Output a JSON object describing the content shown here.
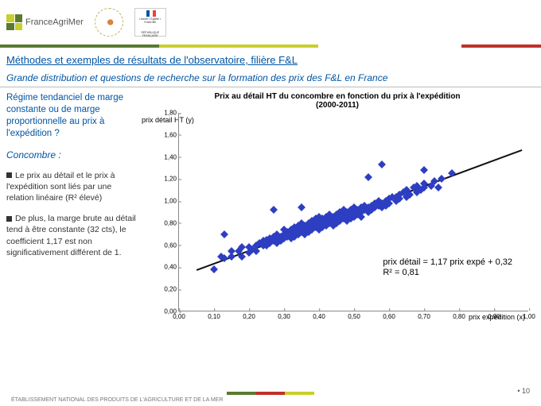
{
  "logos": {
    "france_agrimer": "FranceAgriMer",
    "rf": "RÉPUBLIQUE FRANÇAISE"
  },
  "title": "Méthodes et  exemples de résultats  de l'observatoire, filière F&L",
  "subtitle": "Grande distribution et questions de recherche sur la formation des prix des F&L en France",
  "question": "Régime tendanciel de marge constante ou de marge proportionnelle au prix à l'expédition ?",
  "subject": "Concombre :",
  "para1": "Le prix au détail et le prix à l'expédition sont liés par une relation linéaire (R² élevé)",
  "para2": "De plus, la marge brute au détail tend à être constante (32 cts), le coefficient 1,17 est non significativement différent de 1.",
  "chart": {
    "type": "scatter",
    "title1": "Prix au détail HT du concombre en fonction du prix à l'expédition",
    "title2": "(2000-2011)",
    "ylabel": "prix détail HT (y)",
    "xlabel": "prix expédition (x)",
    "xlim": [
      0,
      1.0
    ],
    "xstep": 0.1,
    "ylim": [
      0,
      1.8
    ],
    "ystep": 0.2,
    "marker_color": "#2e3ec2",
    "background": "#ffffff",
    "equation": "prix détail = 1,17 prix expé + 0,32",
    "r2": "R² = 0,81",
    "trend": {
      "slope": 1.17,
      "intercept": 0.32,
      "color": "#111111",
      "width": 1.5
    },
    "points": [
      [
        0.12,
        0.5
      ],
      [
        0.13,
        0.48
      ],
      [
        0.15,
        0.5
      ],
      [
        0.15,
        0.55
      ],
      [
        0.17,
        0.55
      ],
      [
        0.18,
        0.5
      ],
      [
        0.18,
        0.58
      ],
      [
        0.2,
        0.53
      ],
      [
        0.2,
        0.58
      ],
      [
        0.21,
        0.56
      ],
      [
        0.22,
        0.6
      ],
      [
        0.22,
        0.55
      ],
      [
        0.23,
        0.62
      ],
      [
        0.24,
        0.6
      ],
      [
        0.24,
        0.64
      ],
      [
        0.25,
        0.6
      ],
      [
        0.25,
        0.65
      ],
      [
        0.26,
        0.66
      ],
      [
        0.26,
        0.62
      ],
      [
        0.27,
        0.64
      ],
      [
        0.27,
        0.68
      ],
      [
        0.28,
        0.62
      ],
      [
        0.28,
        0.66
      ],
      [
        0.28,
        0.7
      ],
      [
        0.29,
        0.68
      ],
      [
        0.29,
        0.64
      ],
      [
        0.3,
        0.66
      ],
      [
        0.3,
        0.7
      ],
      [
        0.3,
        0.74
      ],
      [
        0.31,
        0.68
      ],
      [
        0.31,
        0.72
      ],
      [
        0.32,
        0.66
      ],
      [
        0.32,
        0.7
      ],
      [
        0.32,
        0.74
      ],
      [
        0.33,
        0.72
      ],
      [
        0.33,
        0.76
      ],
      [
        0.33,
        0.68
      ],
      [
        0.34,
        0.7
      ],
      [
        0.34,
        0.74
      ],
      [
        0.34,
        0.78
      ],
      [
        0.35,
        0.72
      ],
      [
        0.35,
        0.76
      ],
      [
        0.35,
        0.8
      ],
      [
        0.36,
        0.74
      ],
      [
        0.36,
        0.78
      ],
      [
        0.36,
        0.7
      ],
      [
        0.37,
        0.76
      ],
      [
        0.37,
        0.8
      ],
      [
        0.37,
        0.72
      ],
      [
        0.38,
        0.78
      ],
      [
        0.38,
        0.74
      ],
      [
        0.38,
        0.82
      ],
      [
        0.39,
        0.76
      ],
      [
        0.39,
        0.8
      ],
      [
        0.39,
        0.84
      ],
      [
        0.4,
        0.78
      ],
      [
        0.4,
        0.82
      ],
      [
        0.4,
        0.74
      ],
      [
        0.4,
        0.86
      ],
      [
        0.41,
        0.8
      ],
      [
        0.41,
        0.84
      ],
      [
        0.41,
        0.76
      ],
      [
        0.42,
        0.82
      ],
      [
        0.42,
        0.78
      ],
      [
        0.42,
        0.86
      ],
      [
        0.43,
        0.8
      ],
      [
        0.43,
        0.84
      ],
      [
        0.43,
        0.88
      ],
      [
        0.44,
        0.82
      ],
      [
        0.44,
        0.86
      ],
      [
        0.44,
        0.78
      ],
      [
        0.45,
        0.84
      ],
      [
        0.45,
        0.88
      ],
      [
        0.45,
        0.8
      ],
      [
        0.46,
        0.86
      ],
      [
        0.46,
        0.82
      ],
      [
        0.46,
        0.9
      ],
      [
        0.47,
        0.84
      ],
      [
        0.47,
        0.88
      ],
      [
        0.47,
        0.92
      ],
      [
        0.48,
        0.86
      ],
      [
        0.48,
        0.9
      ],
      [
        0.48,
        0.82
      ],
      [
        0.49,
        0.88
      ],
      [
        0.49,
        0.84
      ],
      [
        0.49,
        0.92
      ],
      [
        0.5,
        0.86
      ],
      [
        0.5,
        0.9
      ],
      [
        0.5,
        0.94
      ],
      [
        0.51,
        0.88
      ],
      [
        0.51,
        0.92
      ],
      [
        0.52,
        0.9
      ],
      [
        0.52,
        0.94
      ],
      [
        0.52,
        0.86
      ],
      [
        0.53,
        0.92
      ],
      [
        0.53,
        0.96
      ],
      [
        0.54,
        0.9
      ],
      [
        0.54,
        0.94
      ],
      [
        0.55,
        0.96
      ],
      [
        0.55,
        0.92
      ],
      [
        0.56,
        0.94
      ],
      [
        0.56,
        0.98
      ],
      [
        0.57,
        0.96
      ],
      [
        0.57,
        1.0
      ],
      [
        0.58,
        0.94
      ],
      [
        0.58,
        0.98
      ],
      [
        0.59,
        1.0
      ],
      [
        0.59,
        0.96
      ],
      [
        0.6,
        0.98
      ],
      [
        0.6,
        1.02
      ],
      [
        0.61,
        1.04
      ],
      [
        0.62,
        1.0
      ],
      [
        0.62,
        1.04
      ],
      [
        0.63,
        1.06
      ],
      [
        0.63,
        1.02
      ],
      [
        0.64,
        1.08
      ],
      [
        0.65,
        1.04
      ],
      [
        0.65,
        1.1
      ],
      [
        0.66,
        1.06
      ],
      [
        0.67,
        1.12
      ],
      [
        0.68,
        1.08
      ],
      [
        0.68,
        1.14
      ],
      [
        0.69,
        1.1
      ],
      [
        0.7,
        1.16
      ],
      [
        0.7,
        1.12
      ],
      [
        0.72,
        1.14
      ],
      [
        0.73,
        1.18
      ],
      [
        0.74,
        1.12
      ],
      [
        0.75,
        1.2
      ],
      [
        0.78,
        1.25
      ],
      [
        0.27,
        0.92
      ],
      [
        0.13,
        0.7
      ],
      [
        0.1,
        0.38
      ],
      [
        0.58,
        1.33
      ],
      [
        0.54,
        1.22
      ],
      [
        0.7,
        1.28
      ],
      [
        0.35,
        0.94
      ]
    ]
  },
  "footer": "ÉTABLISSEMENT NATIONAL DES PRODUITS DE L'AGRICULTURE ET DE LA MER",
  "page": "• 10",
  "footer_bar_colors": [
    "#5a7a30",
    "#c03028",
    "#c8cf2d"
  ]
}
